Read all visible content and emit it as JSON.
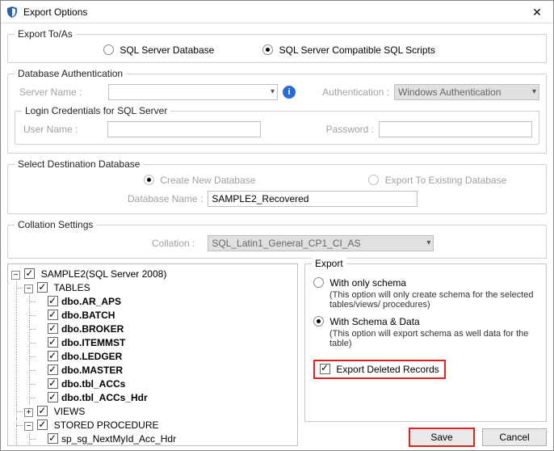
{
  "window": {
    "title": "Export Options",
    "close_glyph": "✕"
  },
  "export_to_as": {
    "legend": "Export To/As",
    "option1": "SQL Server Database",
    "option2": "SQL Server Compatible SQL Scripts",
    "selected": "option2"
  },
  "db_auth": {
    "legend": "Database Authentication",
    "server_label": "Server Name :",
    "server_value": "",
    "auth_label": "Authentication :",
    "auth_value": "Windows Authentication",
    "login_legend": "Login Credentials for SQL Server",
    "user_label": "User Name :",
    "user_value": "",
    "pass_label": "Password :",
    "pass_value": ""
  },
  "dest_db": {
    "legend": "Select Destination Database",
    "create_label": "Create New Database",
    "existing_label": "Export To Existing Database",
    "selected": "create",
    "dbname_label": "Database Name :",
    "dbname_value": "SAMPLE2_Recovered"
  },
  "collation": {
    "legend": "Collation Settings",
    "label": "Collation :",
    "value": "SQL_Latin1_General_CP1_CI_AS"
  },
  "tree": {
    "root": "SAMPLE2(SQL Server 2008)",
    "tables_label": "TABLES",
    "tables": [
      "dbo.AR_APS",
      "dbo.BATCH",
      "dbo.BROKER",
      "dbo.ITEMMST",
      "dbo.LEDGER",
      "dbo.MASTER",
      "dbo.tbl_ACCs",
      "dbo.tbl_ACCs_Hdr"
    ],
    "views_label": "VIEWS",
    "sp_label": "STORED PROCEDURE",
    "sps": [
      "sp_sg_NextMyId_Acc_Hdr"
    ]
  },
  "export_panel": {
    "legend": "Export",
    "opt1": "With only schema",
    "opt1_desc": "(This option will only create schema for the  selected tables/views/ procedures)",
    "opt2": "With Schema & Data",
    "opt2_desc": "(This option will export schema as well data for the table)",
    "selected": "opt2",
    "deleted_label": "Export Deleted Records",
    "deleted_checked": true
  },
  "buttons": {
    "save": "Save",
    "cancel": "Cancel"
  },
  "colors": {
    "hl": "#d22",
    "disabled_bg": "#e0e0e0"
  }
}
